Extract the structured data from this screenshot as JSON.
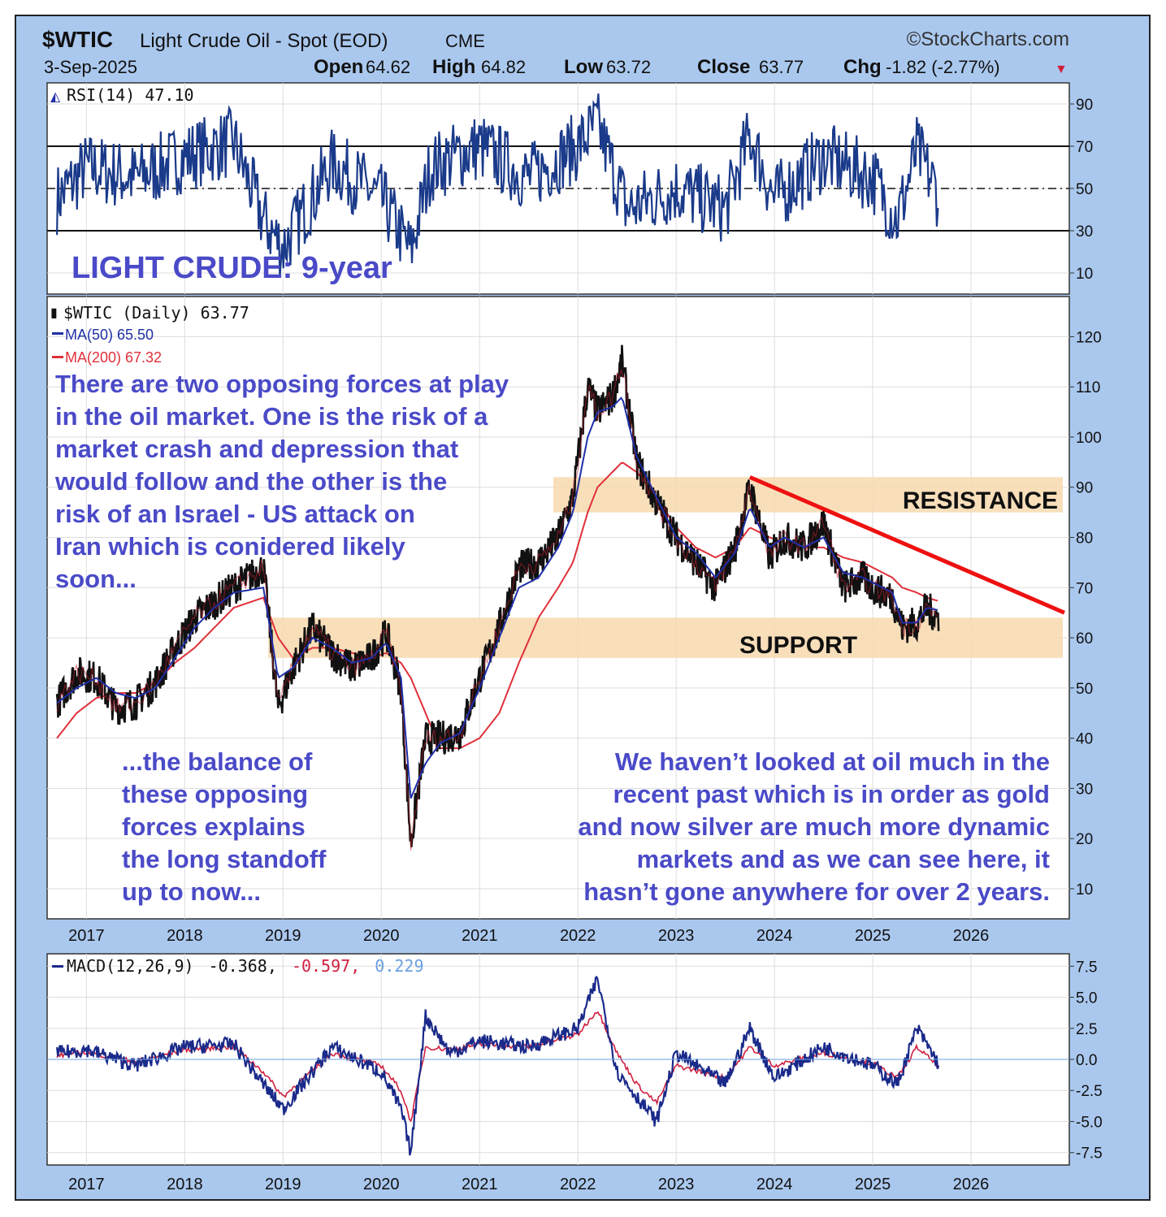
{
  "header": {
    "symbol": "$WTIC",
    "name": "Light Crude Oil - Spot (EOD)",
    "exchange": "CME",
    "source": "©StockCharts.com",
    "date": "3-Sep-2025",
    "open_label": "Open",
    "open": "64.62",
    "high_label": "High",
    "high": "64.82",
    "low_label": "Low",
    "low": "63.72",
    "close_label": "Close",
    "close": "63.77",
    "chg_label": "Chg",
    "chg": "-1.82 (-2.77%)",
    "down_arrow": "▼"
  },
  "colors": {
    "frame": "#aac8ee",
    "price": "#111111",
    "ma50": "#1f2fa8",
    "ma200": "#e0303a",
    "rsi": "#1a3a8a",
    "annotation": "#4a4ac8",
    "band": "#f7d9ae",
    "trendline": "#ee1111",
    "macd": "#1a2a8a",
    "signal": "#d02040",
    "hist": "#6aa0e0"
  },
  "rsi_panel": {
    "legend": "RSI(14) 47.10",
    "title_annotation": "LIGHT CRUDE: 9-year",
    "ticks": [
      "90",
      "70",
      "50",
      "30",
      "10"
    ]
  },
  "price_panel": {
    "legend_main": "$WTIC (Daily) 63.77",
    "legend_ma50": "MA(50) 65.50",
    "legend_ma200": "MA(200) 67.32",
    "ticks": [
      "120",
      "110",
      "100",
      "90",
      "80",
      "70",
      "60",
      "50",
      "40",
      "30",
      "20",
      "10"
    ],
    "resistance_label": "RESISTANCE",
    "support_label": "SUPPORT",
    "note1": [
      "There are two opposing forces at play",
      "in the oil market. One is the risk of a",
      "market crash and depression that",
      "would follow and the other is the",
      "risk of an Israel - US attack on",
      "Iran which is conidered likely",
      "soon..."
    ],
    "note2": [
      "...the balance of",
      "these opposing",
      "forces explains",
      "the long standoff",
      "up to now..."
    ],
    "note3": [
      "We haven’t looked at oil much in the",
      "recent past which is in order as gold",
      "and now silver are much more dynamic",
      "markets and as we can see here, it",
      "hasn’t gone anywhere for over 2 years."
    ]
  },
  "macd_panel": {
    "legend_prefix": "MACD(12,26,9)",
    "macd_value": "-0.368",
    "signal_value": "-0.597",
    "hist_value": "0.229",
    "ticks": [
      "7.5",
      "5.0",
      "2.5",
      "0.0",
      "-2.5",
      "-5.0",
      "-7.5"
    ]
  },
  "x_axis": {
    "years": [
      "2017",
      "2018",
      "2019",
      "2020",
      "2021",
      "2022",
      "2023",
      "2024",
      "2025",
      "2026"
    ]
  },
  "chart_data": [
    {
      "type": "line",
      "title": "RSI(14)",
      "x": [
        2016.7,
        2017.0,
        2017.5,
        2018.0,
        2018.5,
        2018.8,
        2019.0,
        2019.5,
        2020.0,
        2020.3,
        2020.5,
        2021.0,
        2021.5,
        2022.0,
        2022.2,
        2022.5,
        2023.0,
        2023.5,
        2023.75,
        2024.0,
        2024.5,
        2025.0,
        2025.25,
        2025.45,
        2025.67
      ],
      "series": [
        {
          "name": "RSI(14)",
          "values": [
            45,
            60,
            55,
            65,
            72,
            35,
            22,
            62,
            45,
            20,
            60,
            70,
            55,
            70,
            80,
            40,
            50,
            40,
            75,
            45,
            65,
            55,
            35,
            68,
            47.1
          ]
        }
      ],
      "ylim": [
        0,
        100
      ],
      "reference_lines": [
        30,
        50,
        70
      ]
    },
    {
      "type": "line",
      "title": "$WTIC (Daily) 63.77",
      "x": [
        2016.7,
        2016.9,
        2017.1,
        2017.3,
        2017.5,
        2017.7,
        2017.9,
        2018.1,
        2018.3,
        2018.5,
        2018.8,
        2018.95,
        2019.1,
        2019.3,
        2019.5,
        2019.7,
        2019.9,
        2020.05,
        2020.2,
        2020.3,
        2020.45,
        2020.6,
        2020.8,
        2021.0,
        2021.2,
        2021.4,
        2021.6,
        2021.8,
        2021.95,
        2022.1,
        2022.2,
        2022.35,
        2022.45,
        2022.6,
        2022.8,
        2023.0,
        2023.2,
        2023.4,
        2023.6,
        2023.75,
        2023.95,
        2024.1,
        2024.3,
        2024.5,
        2024.7,
        2024.9,
        2025.0,
        2025.2,
        2025.3,
        2025.45,
        2025.55,
        2025.67
      ],
      "series": [
        {
          "name": "$WTIC",
          "values": [
            47,
            53,
            52,
            46,
            47,
            51,
            58,
            64,
            67,
            70,
            74,
            46,
            54,
            62,
            57,
            54,
            56,
            61,
            50,
            19,
            40,
            40,
            41,
            52,
            62,
            74,
            75,
            80,
            88,
            110,
            105,
            108,
            115,
            95,
            87,
            80,
            75,
            70,
            78,
            90,
            76,
            80,
            78,
            83,
            70,
            72,
            70,
            68,
            62,
            63,
            66,
            63.77
          ]
        },
        {
          "name": "MA(50) 65.50",
          "values": [
            47,
            50,
            52,
            49,
            48,
            50,
            56,
            62,
            66,
            69,
            70,
            52,
            54,
            60,
            58,
            55,
            56,
            59,
            52,
            28,
            35,
            39,
            41,
            50,
            60,
            70,
            72,
            78,
            85,
            100,
            105,
            106,
            108,
            96,
            88,
            80,
            77,
            72,
            77,
            86,
            78,
            80,
            78,
            80,
            73,
            72,
            71,
            69,
            63,
            63,
            66,
            65.5
          ]
        },
        {
          "name": "MA(200) 67.32",
          "values": [
            40,
            45,
            48,
            49,
            49,
            51,
            55,
            58,
            62,
            66,
            68,
            60,
            56,
            58,
            58,
            57,
            56,
            57,
            55,
            52,
            45,
            38,
            38,
            40,
            45,
            55,
            64,
            70,
            75,
            85,
            90,
            93,
            95,
            93,
            88,
            82,
            78,
            76,
            78,
            82,
            80,
            79,
            78,
            78,
            76,
            75,
            74,
            72,
            70,
            69,
            68,
            67.32
          ]
        }
      ],
      "ylim": [
        4,
        128
      ],
      "resistance_band": [
        85,
        92
      ],
      "support_band": [
        56,
        64
      ],
      "trendline": {
        "x": [
          2023.75,
          2026.95
        ],
        "y": [
          92,
          65
        ]
      }
    },
    {
      "type": "line",
      "title": "MACD(12,26,9)",
      "x": [
        2016.7,
        2017.0,
        2017.5,
        2018.0,
        2018.5,
        2018.8,
        2019.0,
        2019.5,
        2020.0,
        2020.2,
        2020.3,
        2020.45,
        2020.7,
        2021.0,
        2021.5,
        2022.0,
        2022.2,
        2022.4,
        2022.6,
        2022.8,
        2023.0,
        2023.5,
        2023.75,
        2024.0,
        2024.5,
        2025.0,
        2025.25,
        2025.45,
        2025.67
      ],
      "series": [
        {
          "name": "MACD",
          "values": [
            0.5,
            0.8,
            -0.5,
            1.0,
            1.2,
            -2.0,
            -4.0,
            1.0,
            -1.0,
            -4.0,
            -7.5,
            3.5,
            0.5,
            1.5,
            1.0,
            2.5,
            6.5,
            -1.0,
            -3.0,
            -5.0,
            0.5,
            -2.0,
            2.5,
            -1.5,
            1.0,
            -0.5,
            -2.0,
            2.5,
            -0.368
          ]
        },
        {
          "name": "Signal",
          "values": [
            0.3,
            0.6,
            -0.2,
            0.8,
            1.0,
            -1.0,
            -3.0,
            0.5,
            -0.5,
            -2.5,
            -5.0,
            1.0,
            0.8,
            1.2,
            1.0,
            2.0,
            4.0,
            0.5,
            -2.0,
            -3.5,
            -0.5,
            -1.5,
            1.0,
            -0.5,
            0.5,
            -0.3,
            -1.5,
            1.0,
            -0.597
          ]
        }
      ],
      "histogram_last": 0.229,
      "ylim": [
        -8.5,
        8.5
      ]
    }
  ]
}
